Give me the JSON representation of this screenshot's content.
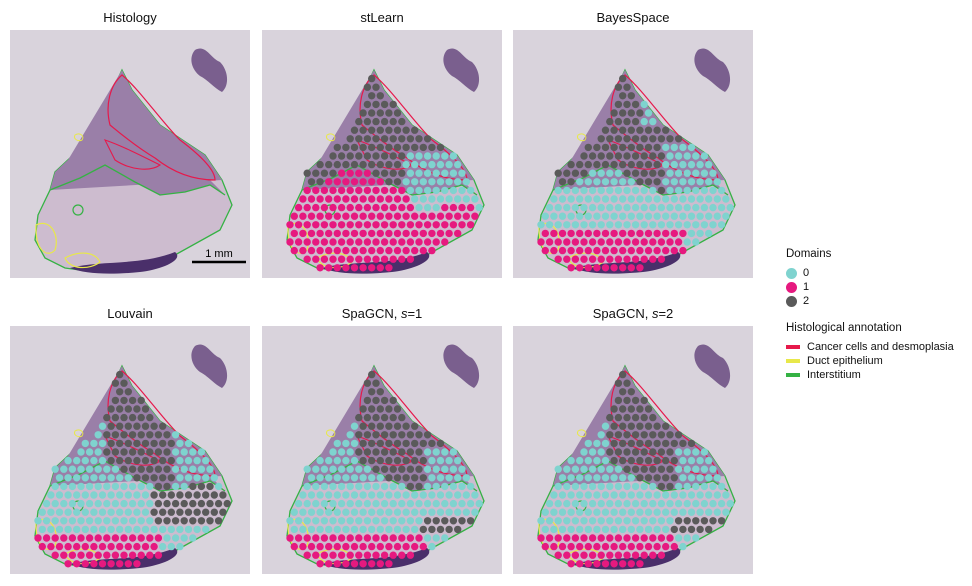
{
  "panels": [
    {
      "title": "Histology",
      "method": "none"
    },
    {
      "title": "stLearn",
      "method": "stlearn"
    },
    {
      "title": "BayesSpace",
      "method": "bayes"
    },
    {
      "title": "Louvain",
      "method": "louvain"
    },
    {
      "title": "SpaGCN, ",
      "title_italic": "s",
      "title_suffix": "=1",
      "method": "spagcn1"
    },
    {
      "title": "SpaGCN, ",
      "title_italic": "s",
      "title_suffix": "=2",
      "method": "spagcn2"
    }
  ],
  "scalebar": {
    "label": "1 mm"
  },
  "legend": {
    "domains_title": "Domains",
    "domains": [
      {
        "label": "0",
        "color": "#7fd3cf"
      },
      {
        "label": "1",
        "color": "#e6197f"
      },
      {
        "label": "2",
        "color": "#5a5a5a"
      }
    ],
    "annotation_title": "Histological annotation",
    "annotations": [
      {
        "label": "Cancer cells and desmoplasia",
        "color": "#e6194b"
      },
      {
        "label": "Duct epithelium",
        "color": "#e8e84a"
      },
      {
        "label": "Interstitium",
        "color": "#35b244"
      }
    ]
  },
  "colors": {
    "background_slide": "#d9d3dc",
    "tissue_light": "#cdbccf",
    "tissue_dark": "#7a5f8e",
    "tissue_deep": "#4a2f6a"
  }
}
